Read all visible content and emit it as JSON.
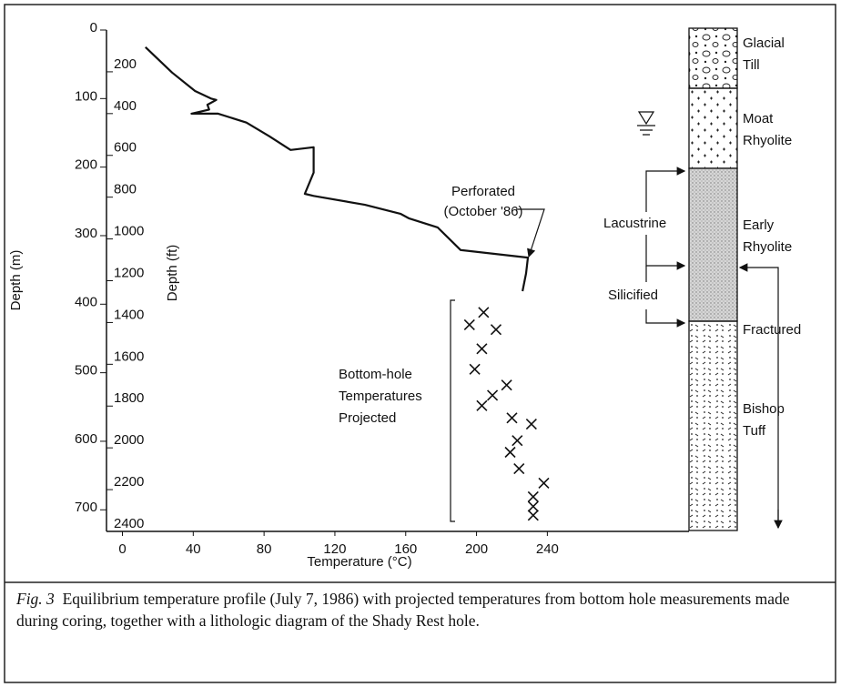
{
  "chart_data": {
    "type": "line",
    "x_label": "Temperature (°C)",
    "y_label": "Depth (m)",
    "y2_label": "Depth (ft)",
    "xlim": [
      -9,
      320
    ],
    "xticks": [
      0,
      40,
      80,
      120,
      160,
      200,
      240
    ],
    "ylim": [
      0,
      731.5
    ],
    "yticks": [
      0,
      100,
      200,
      300,
      400,
      500,
      600,
      700
    ],
    "y_inverted": true,
    "y2lim": [
      0,
      2400
    ],
    "y2ticks": [
      200,
      400,
      600,
      800,
      1000,
      1200,
      1400,
      1600,
      1800,
      2000,
      2200,
      2400
    ],
    "series": [
      {
        "type": "line",
        "color": "#111111",
        "x": [
          13,
          28,
          41,
          50,
          53,
          48,
          49,
          39,
          54,
          70,
          83,
          95,
          108,
          108,
          103,
          108,
          137,
          157,
          162,
          178,
          191,
          229,
          228,
          226
        ],
        "values": [
          25,
          62,
          89,
          100,
          102,
          109,
          116,
          122,
          122,
          135,
          155,
          175,
          171,
          208,
          239,
          242,
          255,
          268,
          275,
          288,
          321,
          332,
          355,
          381
        ]
      },
      {
        "type": "scatter",
        "color": "#111111",
        "x": [
          204,
          196,
          211,
          203,
          199,
          217,
          209,
          203,
          220,
          231,
          223,
          219,
          224,
          238,
          232,
          232,
          232
        ],
        "values": [
          412,
          430,
          437,
          465,
          495,
          518,
          533,
          548,
          566,
          575,
          599,
          616,
          640,
          661,
          681,
          695,
          708
        ]
      }
    ],
    "annotations": [
      "Perforated",
      "(October '86)",
      "Bottom-hole",
      "Temperatures",
      "Projected",
      "Lacustrine",
      "Silicified",
      "Glacial",
      "Till",
      "Moat",
      "Rhyolite",
      "Early",
      "Rhyolite",
      "Fractured",
      "Bishop",
      "Tuff"
    ],
    "caption_label": "Fig. 3",
    "caption": "Equilibrium temperature profile (July 7, 1986) with projected temperatures from bottom hole measurements made during coring, together with a lithologic diagram of the Shady Rest hole."
  }
}
